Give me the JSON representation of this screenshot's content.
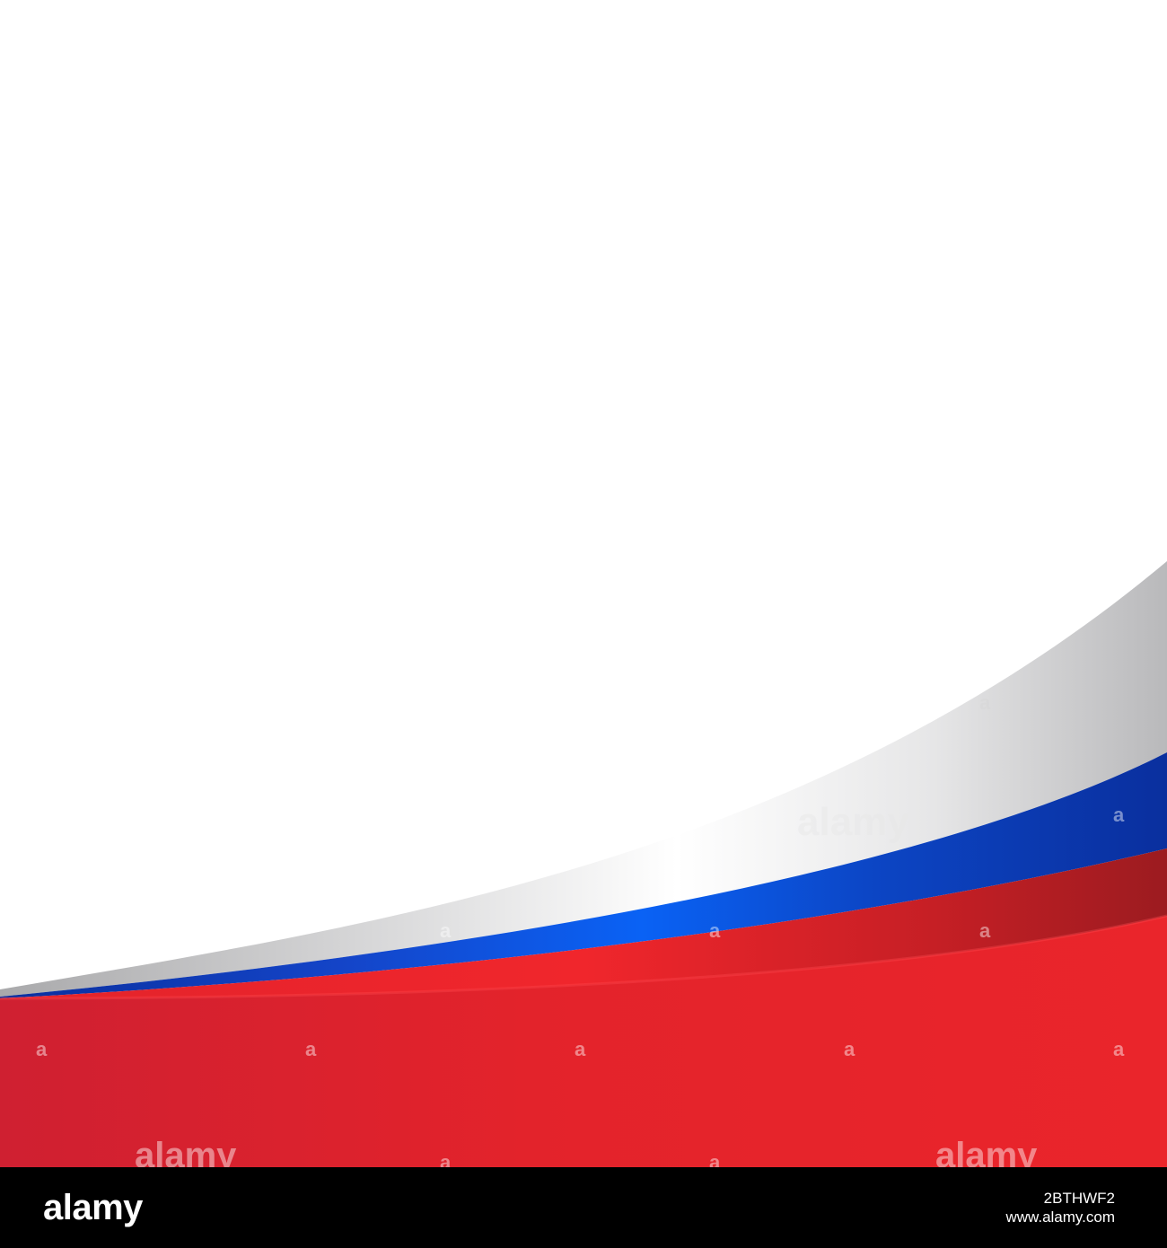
{
  "artwork": {
    "colors": {
      "background": "#ffffff",
      "silver_band_light": "#ffffff",
      "silver_band_dark": "#a9a9ab",
      "blue_band_dark": "#0a2f9e",
      "blue_band_bright": "#0a62f5",
      "red_band_bright": "#f0262c",
      "red_band_dark": "#9c1b20",
      "red_field": "#e3232b"
    },
    "watermarks": {
      "center": "alamy",
      "small": "a",
      "bottom_left": "alamy",
      "bottom_right": "alamy"
    }
  },
  "footer": {
    "logo": "alamy",
    "image_id": "2BTHWF2",
    "url": "www.alamy.com"
  }
}
